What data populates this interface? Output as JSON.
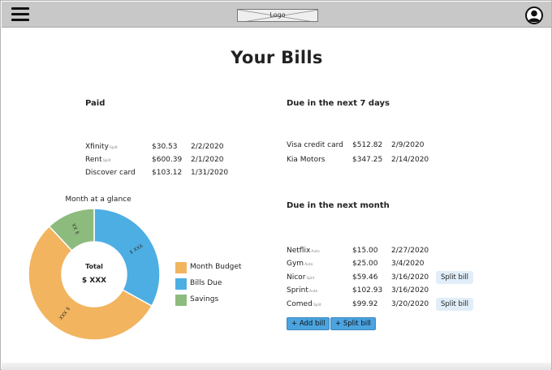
{
  "header": {
    "logo_text": "Logo"
  },
  "page": {
    "title": "Your Bills"
  },
  "paid": {
    "heading": "Paid",
    "bills": [
      {
        "name": "Xfinity",
        "tag": "Split",
        "amount": "$30.53",
        "date": "2/2/2020"
      },
      {
        "name": "Rent",
        "tag": "Split",
        "amount": "$600.39",
        "date": "2/1/2020"
      },
      {
        "name": "Discover card",
        "tag": "",
        "amount": "$103.12",
        "date": "1/31/2020"
      }
    ]
  },
  "due_week": {
    "heading": "Due in the next 7 days",
    "bills": [
      {
        "name": "Visa credit card",
        "tag": "",
        "amount": "$512.82",
        "date": "2/9/2020"
      },
      {
        "name": "Kia Motors",
        "tag": "",
        "amount": "$347.25",
        "date": "2/14/2020"
      }
    ]
  },
  "due_month": {
    "heading": "Due in the next month",
    "bills": [
      {
        "name": "Netflix",
        "tag": "Auto",
        "amount": "$15.00",
        "date": "2/27/2020"
      },
      {
        "name": "Gym",
        "tag": "Auto",
        "amount": "$25.00",
        "date": "3/4/2020"
      },
      {
        "name": "Nicor",
        "tag": "Split",
        "amount": "$59.46",
        "date": "3/16/2020",
        "action": "Split bill"
      },
      {
        "name": "Sprint",
        "tag": "Auto",
        "amount": "$102.93",
        "date": "3/16/2020"
      },
      {
        "name": "Comed",
        "tag": "Split",
        "amount": "$99.92",
        "date": "3/20/2020",
        "action": "Split bill"
      }
    ],
    "add_bill_label": "+ Add bill",
    "split_bill_label": "+ Split bill"
  },
  "glance": {
    "title": "Month at a glance",
    "center_label": "Total",
    "center_value": "$ XXX",
    "segments": [
      {
        "name": "Bills Due",
        "fraction": 0.33,
        "label": "$ XXX",
        "color": "#4daee3"
      },
      {
        "name": "Month Budget",
        "fraction": 0.55,
        "label": "$ XXX",
        "color": "#f2b45f"
      },
      {
        "name": "Savings",
        "fraction": 0.12,
        "label": "$ XX",
        "color": "#8dbb7e"
      }
    ],
    "legend": [
      {
        "label": "Month Budget",
        "color": "#f2b45f"
      },
      {
        "label": "Bills Due",
        "color": "#4daee3"
      },
      {
        "label": "Savings",
        "color": "#8dbb7e"
      }
    ]
  }
}
